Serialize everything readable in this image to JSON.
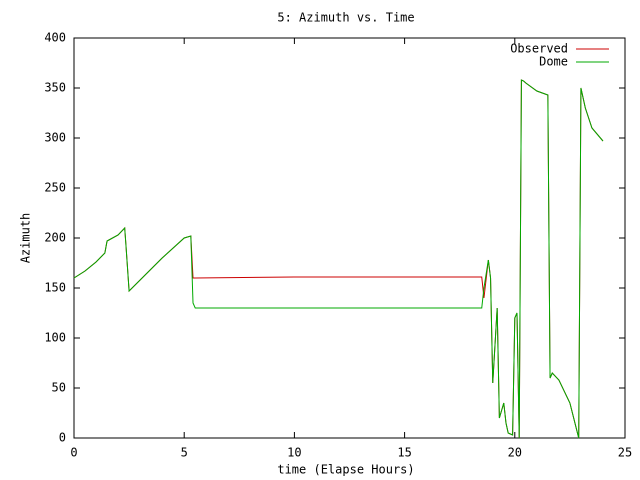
{
  "chart_data": {
    "type": "line",
    "title": "5: Azimuth vs. Time",
    "x_label": "time (Elapse Hours)",
    "y_label": "Azimuth",
    "x": [
      0,
      0.5,
      1.0,
      1.4,
      1.5,
      2.0,
      2.3,
      2.35,
      2.5,
      3.0,
      4.0,
      5.0,
      5.3,
      5.4,
      5.5,
      10,
      15,
      18.5,
      18.6,
      18.8,
      18.9,
      19.0,
      19.2,
      19.3,
      19.5,
      19.6,
      19.7,
      19.9,
      20.0,
      20.1,
      20.2,
      20.3,
      20.4,
      20.5,
      21.0,
      21.5,
      21.6,
      21.7,
      22.0,
      22.5,
      22.9,
      23.0,
      23.2,
      23.5,
      24.0
    ],
    "series": [
      {
        "name": "Observed",
        "color": "#cc0000",
        "values": [
          160,
          167,
          176,
          185,
          197,
          203,
          210,
          195,
          147,
          158,
          180,
          200,
          202,
          160,
          160,
          161,
          161,
          161,
          140,
          178,
          160,
          55,
          130,
          20,
          35,
          15,
          5,
          3,
          120,
          125,
          0,
          358,
          357,
          355,
          347,
          343,
          60,
          65,
          58,
          35,
          0,
          350,
          330,
          310,
          297
        ]
      },
      {
        "name": "Dome",
        "color": "#00aa00",
        "values": [
          160,
          167,
          176,
          185,
          197,
          203,
          210,
          195,
          147,
          158,
          180,
          200,
          202,
          135,
          130,
          130,
          130,
          130,
          150,
          178,
          160,
          55,
          130,
          20,
          35,
          15,
          5,
          3,
          120,
          125,
          0,
          358,
          357,
          355,
          347,
          343,
          60,
          65,
          58,
          35,
          0,
          350,
          330,
          310,
          297
        ]
      }
    ],
    "xlim": [
      0,
      25
    ],
    "xticks": [
      0,
      5,
      10,
      15,
      20,
      25
    ],
    "ylim": [
      0,
      400
    ],
    "yticks": [
      0,
      50,
      100,
      150,
      200,
      250,
      300,
      350,
      400
    ],
    "grid": false,
    "legend": "top-right"
  }
}
